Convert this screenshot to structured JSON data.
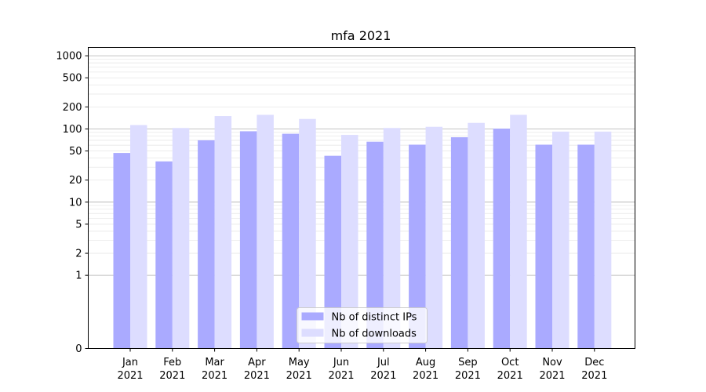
{
  "chart_data": {
    "type": "bar",
    "title": "mfa 2021",
    "xlabel": "",
    "ylabel": "",
    "yscale": "symlog",
    "ylim": [
      0,
      1300
    ],
    "yticks": [
      0,
      1,
      2,
      5,
      10,
      20,
      50,
      100,
      200,
      500,
      1000
    ],
    "ytick_labels": [
      "0",
      "1",
      "2",
      "5",
      "10",
      "20",
      "50",
      "100",
      "200",
      "500",
      "1000"
    ],
    "categories": [
      "Jan\n2021",
      "Feb\n2021",
      "Mar\n2021",
      "Apr\n2021",
      "May\n2021",
      "Jun\n2021",
      "Jul\n2021",
      "Aug\n2021",
      "Sep\n2021",
      "Oct\n2021",
      "Nov\n2021",
      "Dec\n2021"
    ],
    "series": [
      {
        "name": "Nb of distinct IPs",
        "color": "#aaaaff",
        "values": [
          47,
          36,
          70,
          93,
          86,
          43,
          67,
          61,
          77,
          101,
          61,
          61
        ]
      },
      {
        "name": "Nb of downloads",
        "color": "#ddddff",
        "values": [
          113,
          103,
          150,
          156,
          137,
          83,
          103,
          107,
          121,
          156,
          92,
          92
        ]
      }
    ],
    "grid": true,
    "legend": "lower-center"
  }
}
